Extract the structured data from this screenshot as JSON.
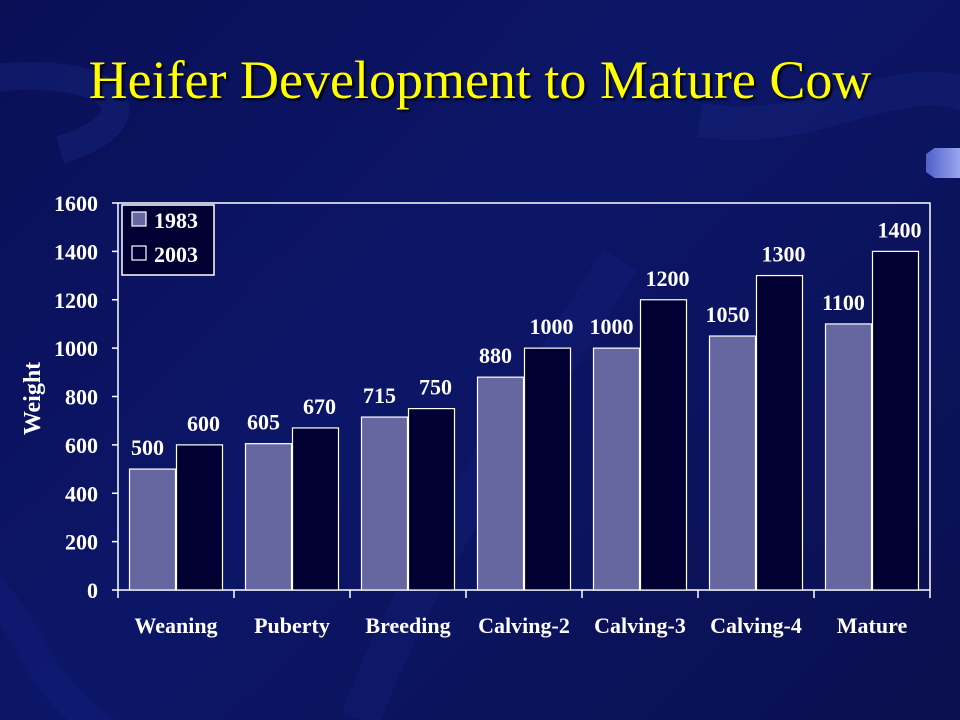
{
  "title": "Heifer Development to Mature Cow",
  "chart_data": {
    "type": "bar",
    "categories": [
      "Weaning",
      "Puberty",
      "Breeding",
      "Calving-2",
      "Calving-3",
      "Calving-4",
      "Mature"
    ],
    "series": [
      {
        "name": "1983",
        "values": [
          500,
          605,
          715,
          880,
          1000,
          1050,
          1100
        ],
        "color": "#6666a0"
      },
      {
        "name": "2003",
        "values": [
          600,
          670,
          750,
          1000,
          1200,
          1300,
          1400
        ],
        "color": "#000033"
      }
    ],
    "ylabel": "Weight",
    "xlabel": "",
    "ylim": [
      0,
      1600
    ],
    "yticks": [
      0,
      200,
      400,
      600,
      800,
      1000,
      1200,
      1400,
      1600
    ],
    "legend_position": "top-left",
    "grid": false,
    "data_labels": true
  }
}
